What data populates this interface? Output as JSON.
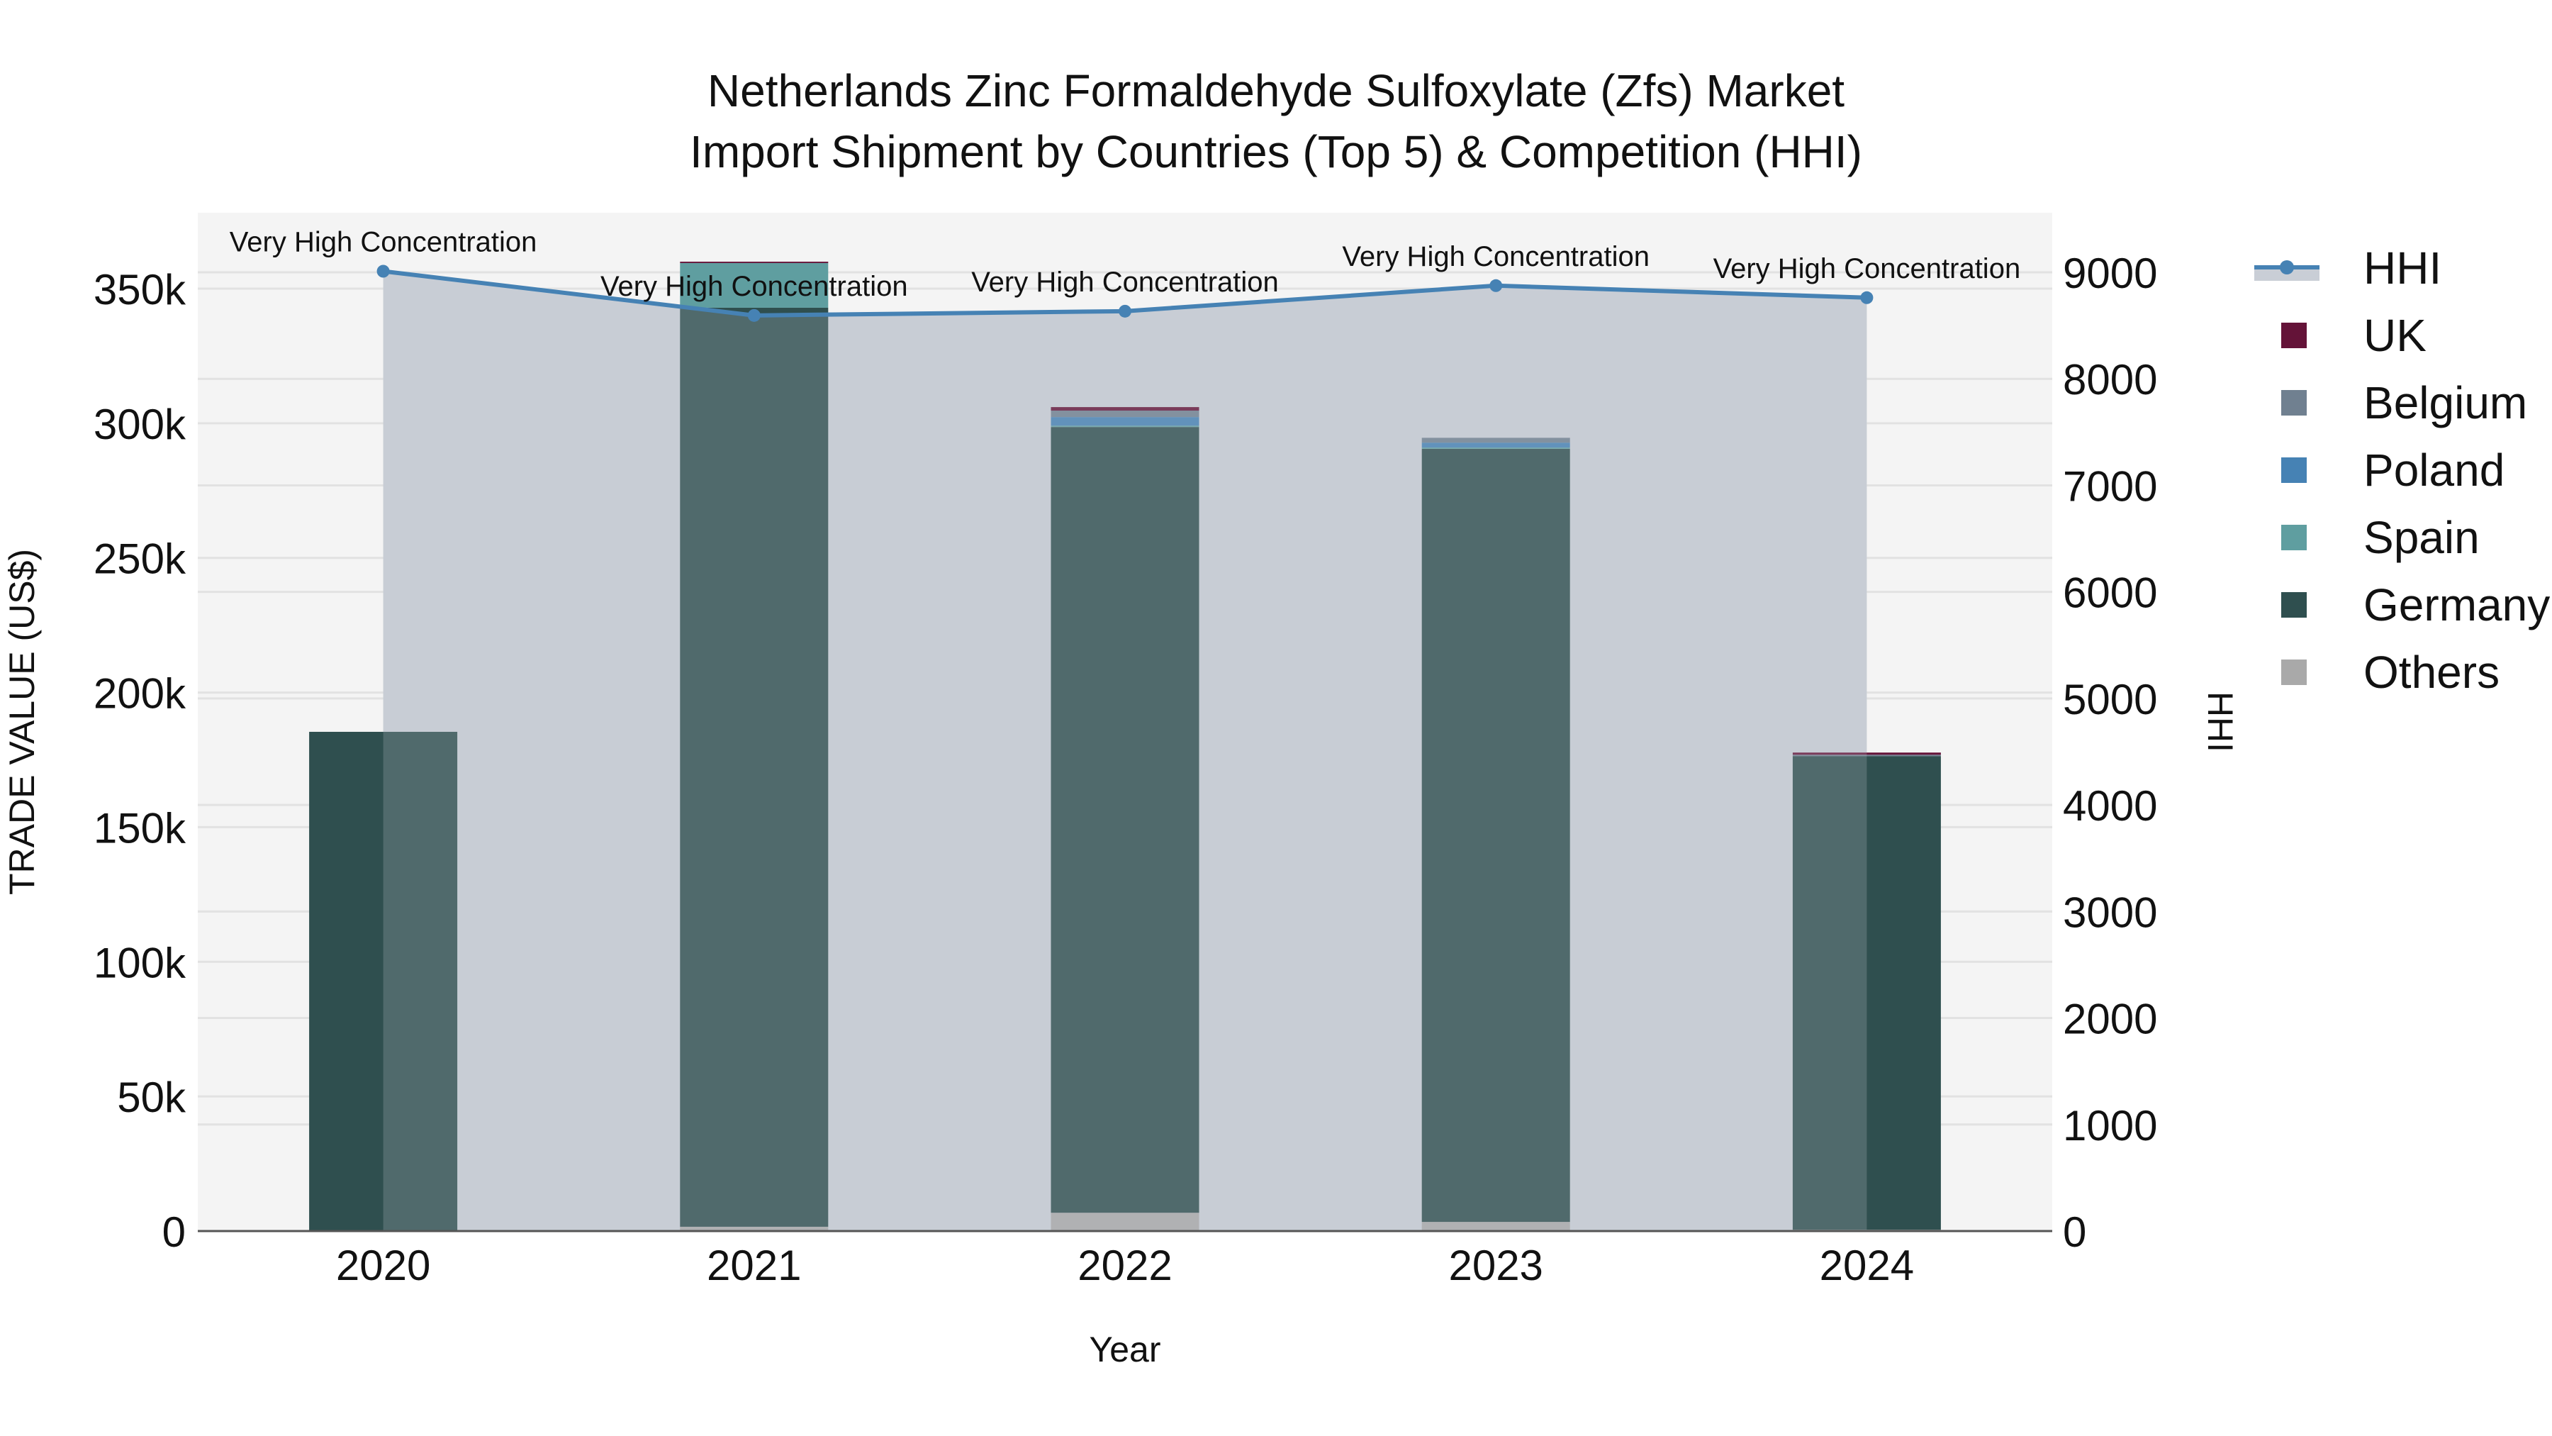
{
  "title": {
    "line1": "Netherlands Zinc Formaldehyde Sulfoxylate (Zfs) Market",
    "line2": "Import Shipment by Countries (Top 5) & Competition (HHI)"
  },
  "axes": {
    "x_title": "Year",
    "y_left_title": "TRADE VALUE (US$)",
    "y_right_title": "HHI",
    "y_left_ticks": [
      "0",
      "50k",
      "100k",
      "150k",
      "200k",
      "250k",
      "300k",
      "350k"
    ],
    "y_right_ticks": [
      "0",
      "1000",
      "2000",
      "3000",
      "4000",
      "5000",
      "6000",
      "7000",
      "8000",
      "9000"
    ]
  },
  "legend": [
    {
      "name": "HHI",
      "type": "line",
      "color": "#4682b4"
    },
    {
      "name": "UK",
      "type": "bar",
      "color": "#641338"
    },
    {
      "name": "Belgium",
      "type": "bar",
      "color": "#708090"
    },
    {
      "name": "Poland",
      "type": "bar",
      "color": "#4682b4"
    },
    {
      "name": "Spain",
      "type": "bar",
      "color": "#5f9ea0"
    },
    {
      "name": "Germany",
      "type": "bar",
      "color": "#2f4f4f"
    },
    {
      "name": "Others",
      "type": "bar",
      "color": "#a9a9a9"
    }
  ],
  "chart_data": {
    "type": "bar",
    "title": "Netherlands Zinc Formaldehyde Sulfoxylate (Zfs) Market Import Shipment by Countries (Top 5) & Competition (HHI)",
    "xlabel": "Year",
    "ylabel": "TRADE VALUE (US$)",
    "y2label": "HHI",
    "categories": [
      "2020",
      "2021",
      "2022",
      "2023",
      "2024"
    ],
    "stacked": true,
    "ylim": [
      0,
      378000
    ],
    "y2lim": [
      0,
      9720
    ],
    "series": [
      {
        "name": "Others",
        "color": "#a9a9a9",
        "values": [
          0,
          1600,
          6800,
          3400,
          500
        ]
      },
      {
        "name": "Germany",
        "color": "#2f4f4f",
        "values": [
          185400,
          341300,
          291800,
          287100,
          175900
        ]
      },
      {
        "name": "Spain",
        "color": "#5f9ea0",
        "values": [
          0,
          16600,
          500,
          500,
          0
        ]
      },
      {
        "name": "Poland",
        "color": "#4682b4",
        "values": [
          0,
          0,
          3200,
          1800,
          0
        ]
      },
      {
        "name": "Belgium",
        "color": "#708090",
        "values": [
          0,
          0,
          2400,
          1800,
          500
        ]
      },
      {
        "name": "UK",
        "color": "#641338",
        "values": [
          0,
          500,
          1300,
          0,
          800
        ]
      }
    ],
    "hhi": {
      "name": "HHI",
      "type": "line+area",
      "axis": "right",
      "color": "#4682b4",
      "values": [
        9010,
        8595,
        8635,
        8875,
        8762
      ],
      "annotations": [
        "Very High Concentration",
        "Very High Concentration",
        "Very High Concentration",
        "Very High Concentration",
        "Very High Concentration"
      ]
    },
    "grid": true,
    "legend_position": "right"
  }
}
